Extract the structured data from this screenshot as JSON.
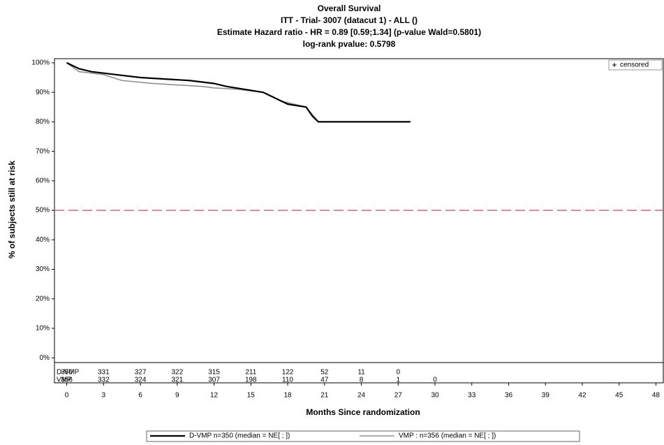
{
  "chart_data": {
    "type": "line",
    "title": "Overall Survival",
    "subtitle": [
      "ITT -  Trial- 3007 (datacut 1) - ALL ()",
      "Estimate Hazard ratio -  HR = 0.89 [0.59;1.34] (p-value Wald=0.5801)",
      "log-rank pvalue: 0.5798"
    ],
    "y_label": "% of subjects still at risk",
    "x_label": "Months Since randomization",
    "xlim": [
      -1,
      48.6
    ],
    "xticks": [
      0,
      3,
      6,
      9,
      12,
      15,
      18,
      21,
      24,
      27,
      30,
      33,
      36,
      39,
      42,
      45,
      48
    ],
    "ylim": [
      -1.6,
      101.4
    ],
    "yticks": [
      {
        "value": 0,
        "label": "0%"
      },
      {
        "value": 10,
        "label": "10%"
      },
      {
        "value": 20,
        "label": "20%"
      },
      {
        "value": 30,
        "label": "30%"
      },
      {
        "value": 40,
        "label": "40%"
      },
      {
        "value": 50,
        "label": "50%"
      },
      {
        "value": 60,
        "label": "60%"
      },
      {
        "value": 70,
        "label": "70%"
      },
      {
        "value": 80,
        "label": "80%"
      },
      {
        "value": 90,
        "label": "90%"
      },
      {
        "value": 100,
        "label": "100%"
      }
    ],
    "reference_line": {
      "value": 50,
      "color": "#e0607a"
    },
    "censored": "censored",
    "series": [
      {
        "name": "D-VMP  n=350 (median = NE[          ;    ])",
        "color": "#000000",
        "x": [
          0,
          0.5,
          1,
          1.5,
          2,
          3,
          4,
          6,
          8,
          10,
          12,
          13,
          14.5,
          16,
          17,
          18,
          19.5,
          20,
          20.5,
          28
        ],
        "values": [
          100,
          99,
          98,
          97.5,
          97,
          96.5,
          96,
          95,
          94.5,
          94,
          93,
          92,
          91,
          90,
          88,
          86,
          85,
          82,
          80,
          80
        ]
      },
      {
        "name": "VMP  :  n=356 (median = NE[          ;    ])",
        "color": "#909090",
        "x": [
          0,
          0.5,
          1,
          2,
          3,
          4.5,
          7,
          11,
          12,
          14,
          16,
          17.5,
          19.5,
          20.5,
          27
        ],
        "values": [
          100,
          98.5,
          97,
          96.5,
          96,
          94,
          93,
          92,
          91.5,
          91,
          90,
          87,
          85,
          80,
          80
        ]
      }
    ],
    "risk_table": [
      {
        "label": "D-VMP",
        "color": "#000000",
        "counts": [
          350,
          331,
          327,
          322,
          315,
          211,
          122,
          52,
          11,
          0
        ]
      },
      {
        "label": "VMP",
        "color": "#aaaaaa",
        "counts": [
          356,
          332,
          324,
          321,
          307,
          198,
          110,
          47,
          8,
          1,
          0
        ]
      }
    ]
  }
}
